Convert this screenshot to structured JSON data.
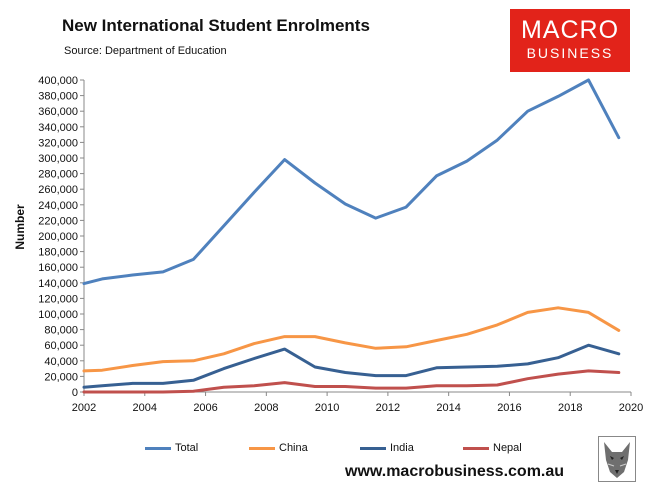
{
  "header": {
    "title": "New International Student Enrolments",
    "source": "Source: Department of Education"
  },
  "logo": {
    "line1": "MACRO",
    "line2": "BUSINESS",
    "color": "#e2231a"
  },
  "footer": {
    "website": "www.macrobusiness.com.au",
    "icon": "wolf-icon"
  },
  "chart_data": {
    "type": "line",
    "title": "New International Student Enrolments",
    "subtitle": "Source: Department of Education",
    "ylabel": "Number",
    "xlabel": "",
    "xlim": [
      2002,
      2020
    ],
    "ylim": [
      0,
      400000
    ],
    "xticks": [
      "2002",
      "2004",
      "2006",
      "2008",
      "2010",
      "2012",
      "2014",
      "2016",
      "2018",
      "2020"
    ],
    "yticks": [
      "0",
      "20,000",
      "40,000",
      "60,000",
      "80,000",
      "100,000",
      "120,000",
      "140,000",
      "160,000",
      "180,000",
      "200,000",
      "220,000",
      "240,000",
      "260,000",
      "280,000",
      "300,000",
      "320,000",
      "340,000",
      "360,000",
      "380,000",
      "400,000"
    ],
    "grid": false,
    "legend": "bottom",
    "x": [
      2002,
      2002.6,
      2003.6,
      2004.6,
      2005.6,
      2006.6,
      2007.6,
      2008.6,
      2009.6,
      2010.6,
      2011.6,
      2012.6,
      2013.6,
      2014.6,
      2015.6,
      2016.6,
      2017.6,
      2018.6,
      2019.6
    ],
    "series": [
      {
        "name": "Total",
        "color": "#4f81bd",
        "values": [
          139000,
          145000,
          150000,
          154000,
          170000,
          213000,
          256000,
          298000,
          268000,
          241000,
          223000,
          237000,
          277000,
          296000,
          323000,
          360000,
          379000,
          400000,
          326000
        ]
      },
      {
        "name": "China",
        "color": "#f79646",
        "values": [
          27000,
          28000,
          34000,
          39000,
          40000,
          49000,
          62000,
          71000,
          71000,
          63000,
          56000,
          58000,
          66000,
          74000,
          86000,
          102000,
          108000,
          102000,
          79000
        ]
      },
      {
        "name": "India",
        "color": "#376092",
        "values": [
          6000,
          8000,
          11000,
          11000,
          15000,
          30000,
          43000,
          55000,
          32000,
          25000,
          21000,
          21000,
          31000,
          32000,
          33000,
          36000,
          44000,
          60000,
          49000
        ]
      },
      {
        "name": "Nepal",
        "color": "#c0504d",
        "values": [
          0,
          0,
          0,
          0,
          1000,
          6000,
          8000,
          12000,
          7000,
          7000,
          5000,
          5000,
          8000,
          8000,
          9000,
          17000,
          23000,
          27000,
          25000
        ]
      }
    ]
  }
}
